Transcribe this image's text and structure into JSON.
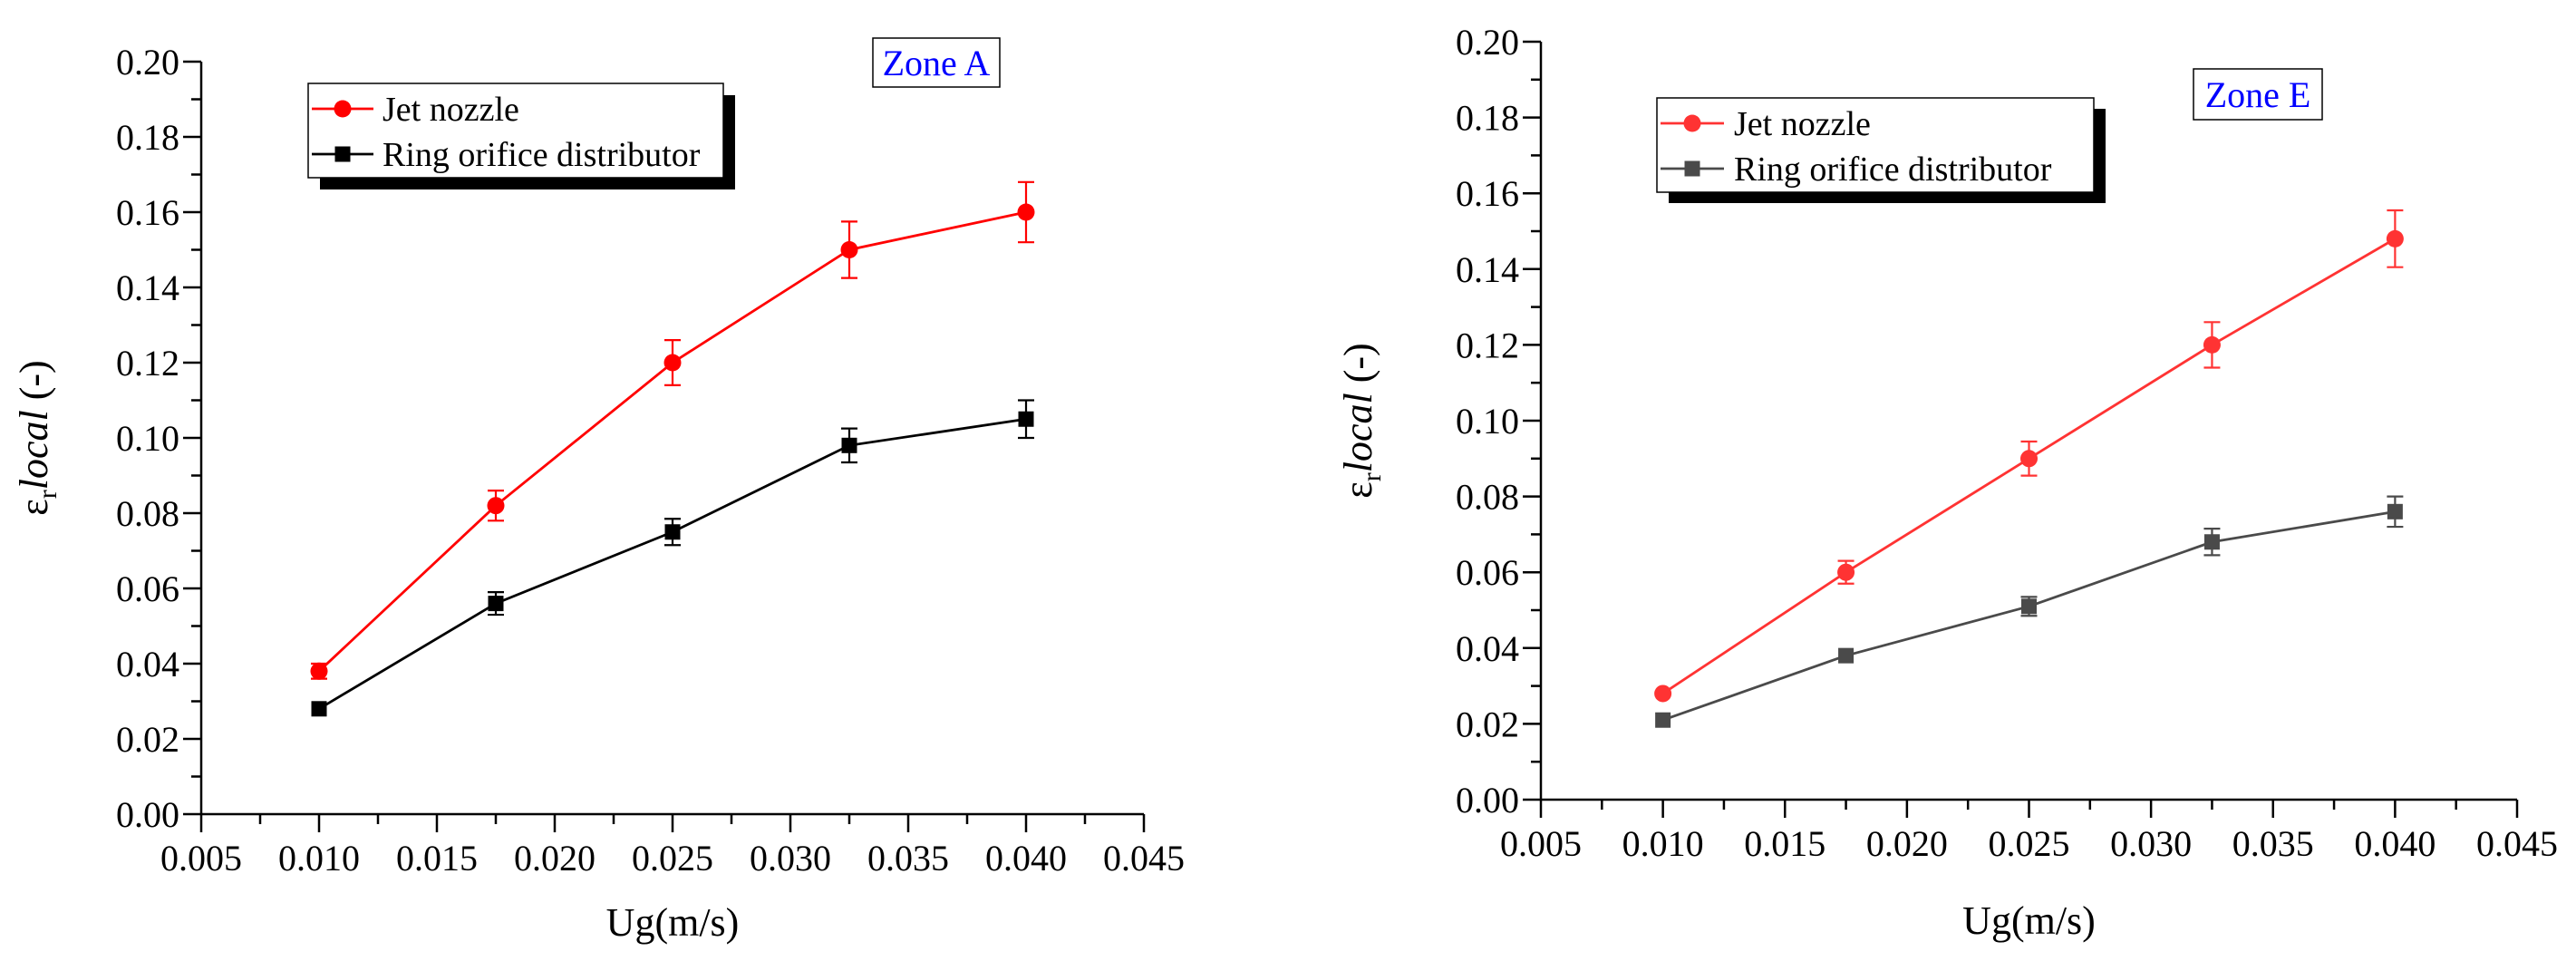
{
  "charts": [
    {
      "type": "line",
      "zone_label": "Zone A",
      "xlabel": "Ug(m/s)",
      "ylabel": "εr local (-)",
      "ylabel_main": "ε",
      "ylabel_sub": "r",
      "ylabel_italic": "local",
      "ylabel_units": " (-)",
      "xlim": [
        0.005,
        0.045
      ],
      "ylim": [
        0.0,
        0.2
      ],
      "xticks": [
        "0.005",
        "0.010",
        "0.015",
        "0.020",
        "0.025",
        "0.030",
        "0.035",
        "0.040",
        "0.045"
      ],
      "yticks": [
        "0.00",
        "0.02",
        "0.04",
        "0.06",
        "0.08",
        "0.10",
        "0.12",
        "0.14",
        "0.16",
        "0.18",
        "0.20"
      ],
      "legend_placement": "top-left",
      "series": [
        {
          "name": "Jet nozzle",
          "marker": "circle",
          "color": "#ff0000",
          "x": [
            0.01,
            0.0175,
            0.025,
            0.0325,
            0.04
          ],
          "y": [
            0.038,
            0.082,
            0.12,
            0.15,
            0.16
          ],
          "err": [
            0.002,
            0.004,
            0.006,
            0.0075,
            0.008
          ]
        },
        {
          "name": "Ring orifice distributor",
          "marker": "square",
          "color": "#000000",
          "x": [
            0.01,
            0.0175,
            0.025,
            0.0325,
            0.04
          ],
          "y": [
            0.028,
            0.056,
            0.075,
            0.098,
            0.105
          ],
          "err": [
            0.0,
            0.003,
            0.0035,
            0.0045,
            0.005
          ]
        }
      ]
    },
    {
      "type": "line",
      "zone_label": "Zone E",
      "xlabel": "Ug(m/s)",
      "ylabel": "εr local (-)",
      "ylabel_main": "ε",
      "ylabel_sub": "r",
      "ylabel_italic": "local",
      "ylabel_units": " (-)",
      "xlim": [
        0.005,
        0.045
      ],
      "ylim": [
        0.0,
        0.2
      ],
      "xticks": [
        "0.005",
        "0.010",
        "0.015",
        "0.020",
        "0.025",
        "0.030",
        "0.035",
        "0.040",
        "0.045"
      ],
      "yticks": [
        "0.00",
        "0.02",
        "0.04",
        "0.06",
        "0.08",
        "0.10",
        "0.12",
        "0.14",
        "0.16",
        "0.18",
        "0.20"
      ],
      "legend_placement": "top-left",
      "series": [
        {
          "name": "Jet nozzle",
          "marker": "circle",
          "color": "#ff3333",
          "x": [
            0.01,
            0.0175,
            0.025,
            0.0325,
            0.04
          ],
          "y": [
            0.028,
            0.06,
            0.09,
            0.12,
            0.148
          ],
          "err": [
            0.0,
            0.003,
            0.0045,
            0.006,
            0.0075
          ]
        },
        {
          "name": "Ring orifice distributor",
          "marker": "square",
          "color": "#4a4a4a",
          "x": [
            0.01,
            0.0175,
            0.025,
            0.0325,
            0.04
          ],
          "y": [
            0.021,
            0.038,
            0.051,
            0.068,
            0.076
          ],
          "err": [
            0.0,
            0.0,
            0.0025,
            0.0035,
            0.004
          ]
        }
      ]
    }
  ],
  "chart_data": [
    {
      "type": "line",
      "title": "Zone A",
      "xlabel": "Ug(m/s)",
      "ylabel": "εr local (-)",
      "xlim": [
        0.005,
        0.045
      ],
      "ylim": [
        0.0,
        0.2
      ],
      "x": [
        0.01,
        0.0175,
        0.025,
        0.0325,
        0.04
      ],
      "series": [
        {
          "name": "Jet nozzle",
          "values": [
            0.038,
            0.082,
            0.12,
            0.15,
            0.16
          ]
        },
        {
          "name": "Ring orifice distributor",
          "values": [
            0.028,
            0.056,
            0.075,
            0.098,
            0.105
          ]
        }
      ]
    },
    {
      "type": "line",
      "title": "Zone E",
      "xlabel": "Ug(m/s)",
      "ylabel": "εr local (-)",
      "xlim": [
        0.005,
        0.045
      ],
      "ylim": [
        0.0,
        0.2
      ],
      "x": [
        0.01,
        0.0175,
        0.025,
        0.0325,
        0.04
      ],
      "series": [
        {
          "name": "Jet nozzle",
          "values": [
            0.028,
            0.06,
            0.09,
            0.12,
            0.148
          ]
        },
        {
          "name": "Ring orifice distributor",
          "values": [
            0.021,
            0.038,
            0.051,
            0.068,
            0.076
          ]
        }
      ]
    }
  ]
}
